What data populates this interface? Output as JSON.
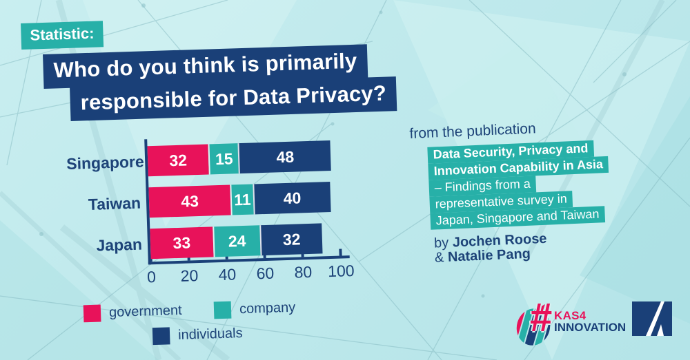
{
  "colors": {
    "background": "#bfe9ec",
    "teal_accent": "#27b0a8",
    "navy": "#1a4078",
    "pink": "#e8125a",
    "text_navy": "#1d4378",
    "white": "#ffffff"
  },
  "header": {
    "kicker": "Statistic:",
    "title_line1": "Who do you think is primarily",
    "title_line2": "responsible for Data Privacy?"
  },
  "chart_data": {
    "type": "bar",
    "orientation": "horizontal",
    "stacked": true,
    "categories": [
      "Singapore",
      "Taiwan",
      "Japan"
    ],
    "series": [
      {
        "name": "government",
        "color": "#e8125a",
        "values": [
          32,
          43,
          33
        ]
      },
      {
        "name": "company",
        "color": "#27b0a8",
        "values": [
          15,
          11,
          24
        ]
      },
      {
        "name": "individuals",
        "color": "#1a4078",
        "values": [
          48,
          40,
          32
        ]
      }
    ],
    "xlim": [
      0,
      100
    ],
    "xticks": [
      0,
      20,
      40,
      60,
      80,
      100
    ],
    "value_labels": "inside-white-bold",
    "legend_position": "bottom-left",
    "grid": false,
    "title": "Who do you think is primarily responsible for Data Privacy?"
  },
  "publication": {
    "intro": "from the publication",
    "highlight_lines": [
      {
        "text": "Data Security, Privacy and",
        "bold": true
      },
      {
        "text": "Innovation Capability in Asia",
        "bold": true
      },
      {
        "text": "– Findings from a",
        "bold": false
      },
      {
        "text": "representative survey in",
        "bold": false
      },
      {
        "text": "Japan, Singapore and Taiwan",
        "bold": false
      }
    ],
    "authors": [
      {
        "prefix": "by ",
        "name": "Jochen Roose"
      },
      {
        "prefix": "& ",
        "name": "Natalie Pang"
      }
    ]
  },
  "branding": {
    "hashtag": "#",
    "kas4": "KAS4",
    "innovation": "INNOVATION"
  }
}
